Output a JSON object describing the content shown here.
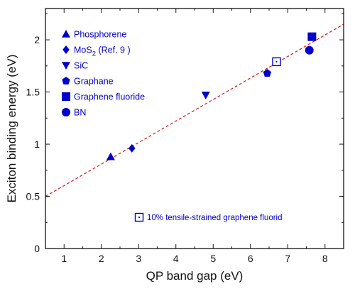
{
  "chart_data": {
    "type": "scatter",
    "xlabel": "QP band gap (eV)",
    "ylabel": "Exciton binding energy (eV)",
    "xlim": [
      0.5,
      8.5
    ],
    "ylim": [
      0,
      2.3
    ],
    "x_ticks": [
      1,
      2,
      3,
      4,
      5,
      6,
      7,
      8
    ],
    "y_ticks": [
      0,
      0.5,
      1,
      1.5,
      2
    ],
    "x_tick_labels": [
      "1",
      "2",
      "3",
      "4",
      "5",
      "6",
      "7",
      "8"
    ],
    "y_tick_labels": [
      "0",
      "0.5",
      "1",
      "1.5",
      "2"
    ],
    "grid": false,
    "legend_position": "top-left",
    "color": "#0000cc",
    "fit_line": {
      "color": "#dd2222",
      "style": "dashed",
      "x": [
        0.5,
        8.5
      ],
      "y": [
        0.5,
        2.15
      ]
    },
    "series": [
      {
        "name": "Phosphorene",
        "marker": "triangle-up",
        "filled": true,
        "x": [
          2.25
        ],
        "y": [
          0.88
        ]
      },
      {
        "name": "MoS2 (Ref. 9 )",
        "marker": "diamond",
        "filled": true,
        "x": [
          2.82
        ],
        "y": [
          0.96
        ]
      },
      {
        "name": "SiC",
        "marker": "triangle-down",
        "filled": true,
        "x": [
          4.8
        ],
        "y": [
          1.47
        ]
      },
      {
        "name": "Graphane",
        "marker": "pentagon",
        "filled": true,
        "x": [
          6.45
        ],
        "y": [
          1.68
        ]
      },
      {
        "name": "Graphene fluoride",
        "marker": "square",
        "filled": true,
        "x": [
          7.65
        ],
        "y": [
          2.03
        ]
      },
      {
        "name": "BN",
        "marker": "circle",
        "filled": true,
        "x": [
          7.58
        ],
        "y": [
          1.9
        ]
      },
      {
        "name": "10% tensile-strained graphene fluorid",
        "marker": "dotted-square",
        "filled": false,
        "x": [
          6.7
        ],
        "y": [
          1.79
        ]
      }
    ],
    "legend": {
      "entries": [
        {
          "label": "Phosphorene",
          "marker": "triangle-up"
        },
        {
          "label": "MoS2 (Ref. 9 )",
          "marker": "diamond",
          "base": "MoS",
          "subscript": "2",
          "suffix": " (Ref. 9 )"
        },
        {
          "label": "SiC",
          "marker": "triangle-down"
        },
        {
          "label": "Graphane",
          "marker": "pentagon"
        },
        {
          "label": "Graphene fluoride",
          "marker": "square"
        },
        {
          "label": "BN",
          "marker": "circle"
        }
      ],
      "annotation": {
        "label": "10% tensile-strained graphene fluorid",
        "marker": "dotted-square"
      }
    }
  }
}
